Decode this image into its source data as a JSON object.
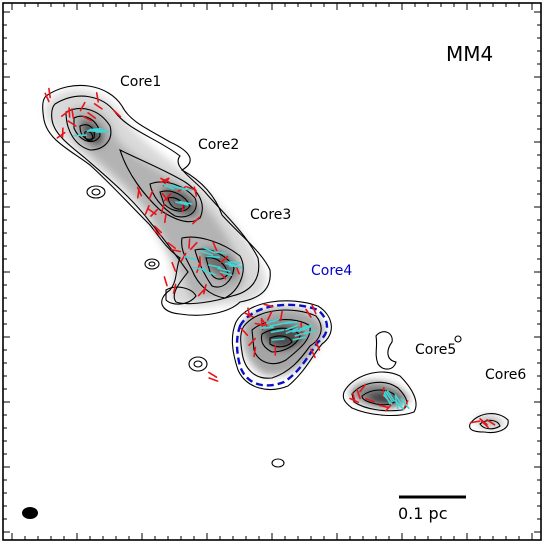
{
  "panel": {
    "title": "MM4"
  },
  "cores": [
    {
      "label": "Core1",
      "color": "#000000"
    },
    {
      "label": "Core2",
      "color": "#000000"
    },
    {
      "label": "Core3",
      "color": "#000000"
    },
    {
      "label": "Core4",
      "color": "#0000cc"
    },
    {
      "label": "Core5",
      "color": "#000000"
    },
    {
      "label": "Core6",
      "color": "#000000"
    }
  ],
  "scalebar": {
    "label": "0.1 pc"
  },
  "colors": {
    "contour": "#000000",
    "vector_red": "#e8141a",
    "vector_cyan": "#3fd7d5",
    "highlight_contour": "#0a10c8"
  }
}
